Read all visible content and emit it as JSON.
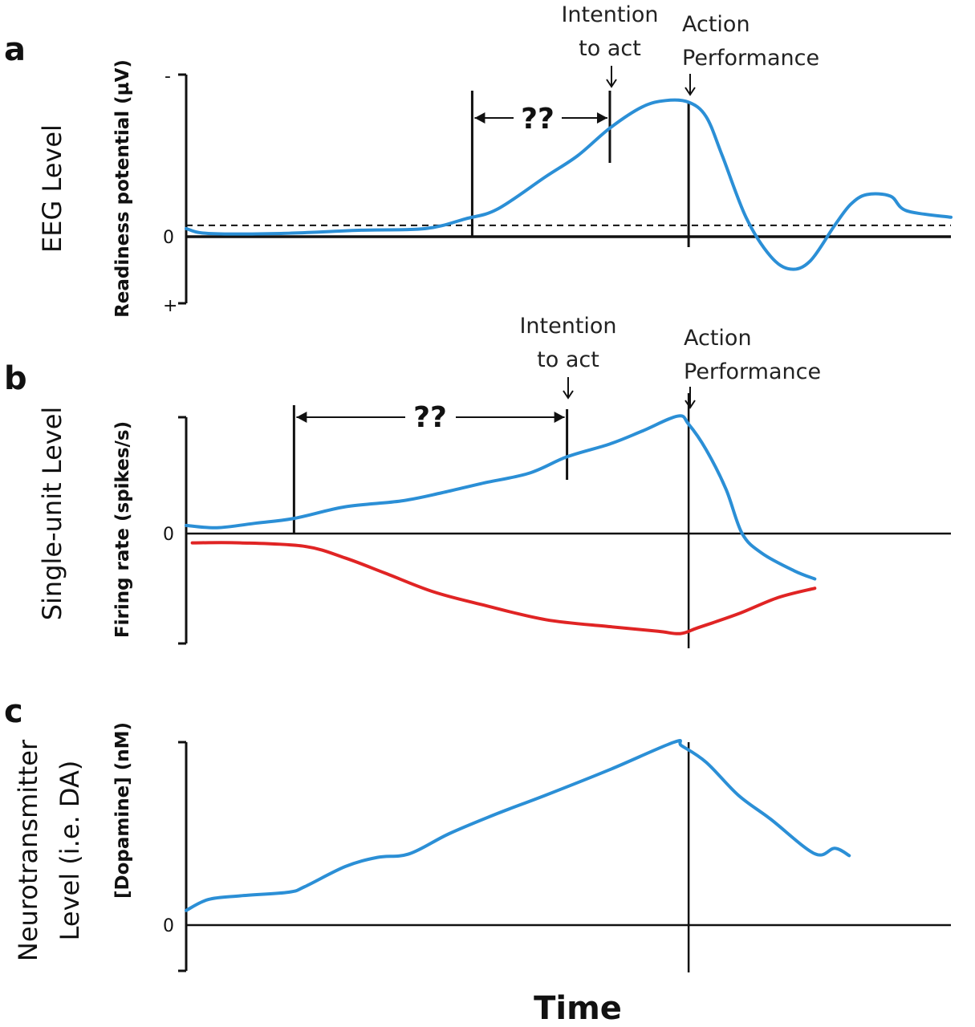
{
  "chart_data": [
    {
      "type": "line",
      "panel_letter": "a",
      "ylabel_outer": "EEG Level",
      "ylabel": "Readiness potential (µV)",
      "y_ticks": [
        "-",
        "0",
        "+"
      ],
      "annotations": {
        "interval": "??",
        "intention": [
          "Intention",
          "to act"
        ],
        "action": [
          "Action",
          "Performance"
        ]
      },
      "xlim": [
        0,
        100
      ],
      "ylim": [
        -0.41,
        1
      ],
      "threshold": 0.07,
      "markers": {
        "onset": 37.4,
        "intention": 55.4,
        "action": 65.7
      },
      "series": [
        {
          "color": "#2b8fd6",
          "x": [
            0,
            2.9,
            12.4,
            22.9,
            31.3,
            36.5,
            40.7,
            47,
            51.2,
            55.4,
            59.6,
            62.7,
            65.7,
            68,
            70.1,
            73.2,
            76.4,
            79,
            81.6,
            84.8,
            86.9,
            89,
            92.1,
            94.2,
            100
          ],
          "y": [
            0.05,
            0.02,
            0.02,
            0.04,
            0.05,
            0.11,
            0.17,
            0.37,
            0.5,
            0.67,
            0.8,
            0.84,
            0.83,
            0.74,
            0.5,
            0.12,
            -0.12,
            -0.2,
            -0.15,
            0.07,
            0.2,
            0.26,
            0.25,
            0.16,
            0.12
          ]
        }
      ]
    },
    {
      "type": "line",
      "panel_letter": "b",
      "ylabel_outer": "Single-unit Level",
      "ylabel": "Firing rate (spikes/s)",
      "y_ticks": [
        "0"
      ],
      "annotations": {
        "interval": "??",
        "intention": [
          "Intention",
          "to act"
        ],
        "action": [
          "Action",
          "Performance"
        ]
      },
      "xlim": [
        0,
        100
      ],
      "ylim": [
        -0.94,
        1
      ],
      "markers": {
        "onset": 14.1,
        "intention": 49.8,
        "action": 65.7
      },
      "series": [
        {
          "color": "#2b8fd6",
          "x": [
            0,
            4,
            9.2,
            14.1,
            20.8,
            28.1,
            33.4,
            38.6,
            44.9,
            49.8,
            55.4,
            59.6,
            64.3,
            65.7,
            68,
            70.6,
            72.7,
            75.3,
            79.5,
            82.2
          ],
          "y": [
            0.07,
            0.05,
            0.09,
            0.13,
            0.23,
            0.28,
            0.35,
            0.43,
            0.52,
            0.66,
            0.77,
            0.88,
            1.01,
            0.94,
            0.72,
            0.38,
            0,
            -0.17,
            -0.32,
            -0.39
          ]
        },
        {
          "color": "#e02424",
          "x": [
            0.8,
            7.1,
            15.5,
            20.8,
            26,
            32.3,
            38.6,
            47,
            55.4,
            61.7,
            64.6,
            66.9,
            72.2,
            77.4,
            82.2
          ],
          "y": [
            -0.08,
            -0.08,
            -0.11,
            -0.21,
            -0.34,
            -0.5,
            -0.61,
            -0.74,
            -0.8,
            -0.84,
            -0.86,
            -0.81,
            -0.69,
            -0.55,
            -0.47
          ]
        }
      ]
    },
    {
      "type": "line",
      "panel_letter": "c",
      "ylabel_outer": [
        "Neurotransmitter",
        "Level (i.e. DA)"
      ],
      "ylabel": "[Dopamine] (nM)",
      "y_ticks": [
        "0"
      ],
      "xlabel": "Time",
      "xlim": [
        0,
        100
      ],
      "ylim": [
        -0.25,
        1
      ],
      "markers": {
        "action": 65.7
      },
      "series": [
        {
          "color": "#2b8fd6",
          "x": [
            0,
            2.9,
            7.1,
            13.4,
            15.5,
            20.8,
            25,
            29.2,
            34.4,
            40.7,
            47,
            55.4,
            63.8,
            64.8,
            68,
            72.2,
            76.4,
            82.2,
            84.8,
            86.7
          ],
          "y": [
            0.08,
            0.14,
            0.16,
            0.18,
            0.21,
            0.32,
            0.37,
            0.39,
            0.5,
            0.61,
            0.71,
            0.85,
            1,
            0.98,
            0.89,
            0.71,
            0.58,
            0.39,
            0.42,
            0.38
          ]
        }
      ]
    }
  ]
}
